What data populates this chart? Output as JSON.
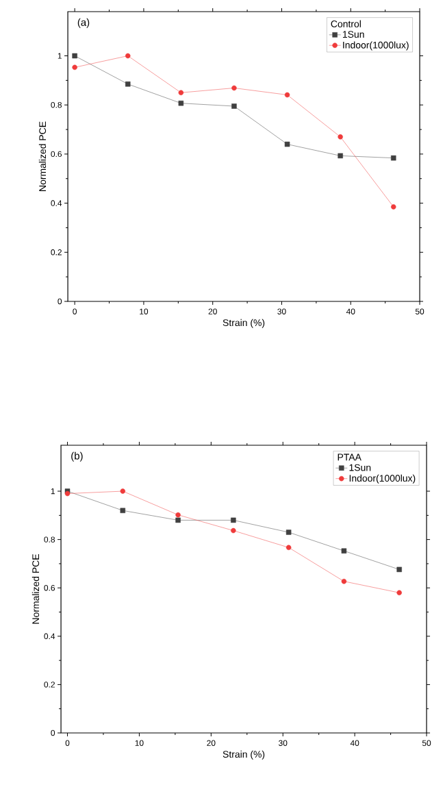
{
  "chart_data": [
    {
      "type": "line",
      "annotations": [
        "(a)"
      ],
      "xlabel": "Strain (%)",
      "ylabel": "Normalized PCE",
      "legend_title": "Control",
      "legend": "top right",
      "x": [
        0,
        7.7,
        15.4,
        23.1,
        30.8,
        38.5,
        46.2
      ],
      "series": [
        {
          "name": "1Sun",
          "color": "#404040",
          "marker": "square",
          "values": [
            1.0,
            0.885,
            0.807,
            0.795,
            0.64,
            0.593,
            0.584
          ]
        },
        {
          "name": "Indoor(1000lux)",
          "color": "#ef3b3b",
          "marker": "circle",
          "values": [
            0.953,
            1.0,
            0.85,
            0.869,
            0.841,
            0.67,
            0.385
          ]
        }
      ],
      "xlim": [
        -1,
        50
      ],
      "ylim": [
        0,
        1.18
      ],
      "xticks": [
        0,
        10,
        20,
        30,
        40,
        50
      ],
      "yticks": [
        0,
        0.2,
        0.4,
        0.6,
        0.8,
        1
      ]
    },
    {
      "type": "line",
      "annotations": [
        "(b)"
      ],
      "xlabel": "Strain (%)",
      "ylabel": "Normalized PCE",
      "legend_title": "PTAA",
      "legend": "top right",
      "x": [
        0,
        7.7,
        15.4,
        23.1,
        30.8,
        38.5,
        46.2
      ],
      "series": [
        {
          "name": "1Sun",
          "color": "#404040",
          "marker": "square",
          "values": [
            1.0,
            0.92,
            0.88,
            0.88,
            0.83,
            0.753,
            0.676
          ]
        },
        {
          "name": "Indoor(1000lux)",
          "color": "#ef3b3b",
          "marker": "circle",
          "values": [
            0.99,
            1.0,
            0.902,
            0.837,
            0.767,
            0.627,
            0.58
          ]
        }
      ],
      "xlim": [
        -0.9,
        50
      ],
      "ylim": [
        0,
        1.19
      ],
      "xticks": [
        0,
        10,
        20,
        30,
        40,
        50
      ],
      "yticks": [
        0,
        0.2,
        0.4,
        0.6,
        0.8,
        1
      ]
    }
  ]
}
